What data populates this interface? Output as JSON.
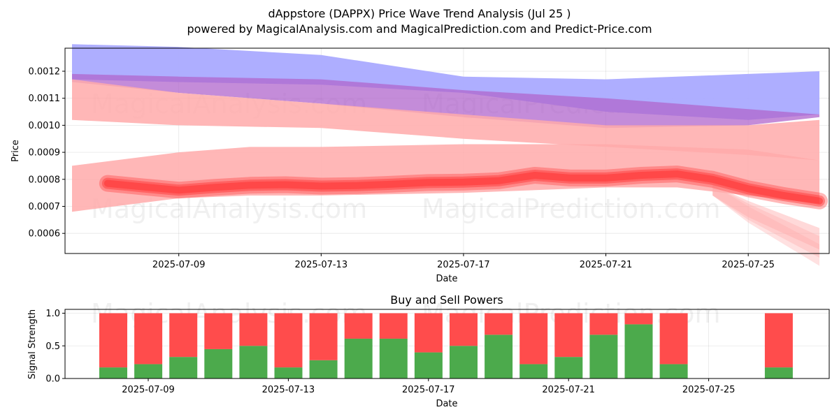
{
  "title": "dAppstore (DAPPX) Price Wave Trend Analysis (Jul 25 )",
  "subtitle": "powered by MagicalAnalysis.com and MagicalPrediction.com and Predict-Price.com",
  "watermarks": [
    "MagicalAnalysis.com",
    "MagicalPrediction.com"
  ],
  "colors": {
    "buy": "#4caa4c",
    "sell": "#ff4c4c",
    "blue_band": "#aaaaff",
    "red_band": "#ffaaaa",
    "red_line": "#ff3333"
  },
  "chart_data": [
    {
      "type": "area",
      "xlabel": "Date",
      "ylabel": "Price",
      "x_ticks": [
        "2025-07-09",
        "2025-07-13",
        "2025-07-17",
        "2025-07-21",
        "2025-07-25"
      ],
      "y_ticks": [
        "0.0006",
        "0.0007",
        "0.0008",
        "0.0009",
        "0.0010",
        "0.0011",
        "0.0012"
      ],
      "xlim": [
        "2025-07-06",
        "2025-07-27"
      ],
      "ylim": [
        0.000525,
        0.001285
      ],
      "grid": true,
      "series": [
        {
          "kind": "band",
          "color": "blue",
          "x": [
            "2025-07-06",
            "2025-07-09",
            "2025-07-13",
            "2025-07-17",
            "2025-07-21",
            "2025-07-25",
            "2025-07-27"
          ],
          "upper": [
            0.0013,
            0.00129,
            0.00126,
            0.00118,
            0.00117,
            0.00119,
            0.0012
          ],
          "lower": [
            0.00117,
            0.00116,
            0.00115,
            0.00112,
            0.00105,
            0.00102,
            0.00104
          ]
        },
        {
          "kind": "band",
          "color": "purple",
          "x": [
            "2025-07-06",
            "2025-07-09",
            "2025-07-13",
            "2025-07-17",
            "2025-07-21",
            "2025-07-25",
            "2025-07-27"
          ],
          "upper": [
            0.00119,
            0.00118,
            0.00117,
            0.00113,
            0.0011,
            0.00106,
            0.00104
          ],
          "lower": [
            0.00116,
            0.00112,
            0.00108,
            0.00103,
            0.00099,
            0.001,
            0.00103
          ]
        },
        {
          "kind": "band",
          "color": "red",
          "x": [
            "2025-07-06",
            "2025-07-09",
            "2025-07-13",
            "2025-07-17",
            "2025-07-21",
            "2025-07-25",
            "2025-07-27"
          ],
          "upper": [
            0.00117,
            0.00112,
            0.00108,
            0.00104,
            0.001,
            0.001,
            0.00102
          ],
          "lower": [
            0.00102,
            0.001,
            0.00099,
            0.00095,
            0.00092,
            0.00089,
            0.00087
          ]
        },
        {
          "kind": "band",
          "color": "red",
          "x": [
            "2025-07-06",
            "2025-07-09",
            "2025-07-11",
            "2025-07-13",
            "2025-07-17",
            "2025-07-21",
            "2025-07-23",
            "2025-07-25",
            "2025-07-27"
          ],
          "upper": [
            0.00085,
            0.0009,
            0.00092,
            0.00092,
            0.00093,
            0.00093,
            0.00092,
            0.00091,
            0.00087
          ],
          "lower": [
            0.00068,
            0.00073,
            0.00074,
            0.00074,
            0.00075,
            0.00077,
            0.00077,
            0.00074,
            0.00071
          ]
        },
        {
          "kind": "fan",
          "color": "light-red",
          "x": [
            "2025-07-24",
            "2025-07-25",
            "2025-07-26",
            "2025-07-27"
          ],
          "upper": [
            0.00078,
            0.00072,
            0.00067,
            0.00062
          ],
          "lower": [
            0.00074,
            0.00066,
            0.0006,
            0.00054
          ]
        },
        {
          "kind": "line",
          "color": "red",
          "x": [
            "2025-07-07",
            "2025-07-08",
            "2025-07-09",
            "2025-07-10",
            "2025-07-11",
            "2025-07-12",
            "2025-07-13",
            "2025-07-14",
            "2025-07-15",
            "2025-07-16",
            "2025-07-17",
            "2025-07-18",
            "2025-07-19",
            "2025-07-20",
            "2025-07-21",
            "2025-07-22",
            "2025-07-23",
            "2025-07-24",
            "2025-07-25",
            "2025-07-26",
            "2025-07-27"
          ],
          "y": [
            0.000785,
            0.000772,
            0.00076,
            0.00077,
            0.000778,
            0.00078,
            0.000775,
            0.000777,
            0.000782,
            0.000788,
            0.00079,
            0.000795,
            0.000815,
            0.000805,
            0.000805,
            0.000815,
            0.00082,
            0.0008,
            0.000765,
            0.00074,
            0.00072
          ]
        }
      ]
    },
    {
      "type": "bar",
      "title": "Buy and Sell Powers",
      "xlabel": "Date",
      "ylabel": "Signal Strength",
      "x_ticks": [
        "2025-07-09",
        "2025-07-13",
        "2025-07-17",
        "2025-07-21",
        "2025-07-25"
      ],
      "y_ticks": [
        "0.0",
        "0.5",
        "1.0"
      ],
      "ylim": [
        0,
        1.05
      ],
      "grid": true,
      "categories": [
        "2025-07-08",
        "2025-07-09",
        "2025-07-10",
        "2025-07-11",
        "2025-07-12",
        "2025-07-13",
        "2025-07-14",
        "2025-07-15",
        "2025-07-16",
        "2025-07-17",
        "2025-07-18",
        "2025-07-19",
        "2025-07-20",
        "2025-07-21",
        "2025-07-22",
        "2025-07-23",
        "2025-07-24",
        "2025-07-27"
      ],
      "series": [
        {
          "name": "buy",
          "values": [
            0.17,
            0.22,
            0.33,
            0.45,
            0.5,
            0.17,
            0.28,
            0.61,
            0.61,
            0.4,
            0.5,
            0.67,
            0.22,
            0.33,
            0.67,
            0.83,
            0.22,
            0.17
          ]
        },
        {
          "name": "sell",
          "values": [
            0.83,
            0.78,
            0.67,
            0.55,
            0.5,
            0.83,
            0.72,
            0.39,
            0.39,
            0.6,
            0.5,
            0.33,
            0.78,
            0.67,
            0.33,
            0.17,
            0.78,
            0.83
          ]
        }
      ]
    }
  ]
}
